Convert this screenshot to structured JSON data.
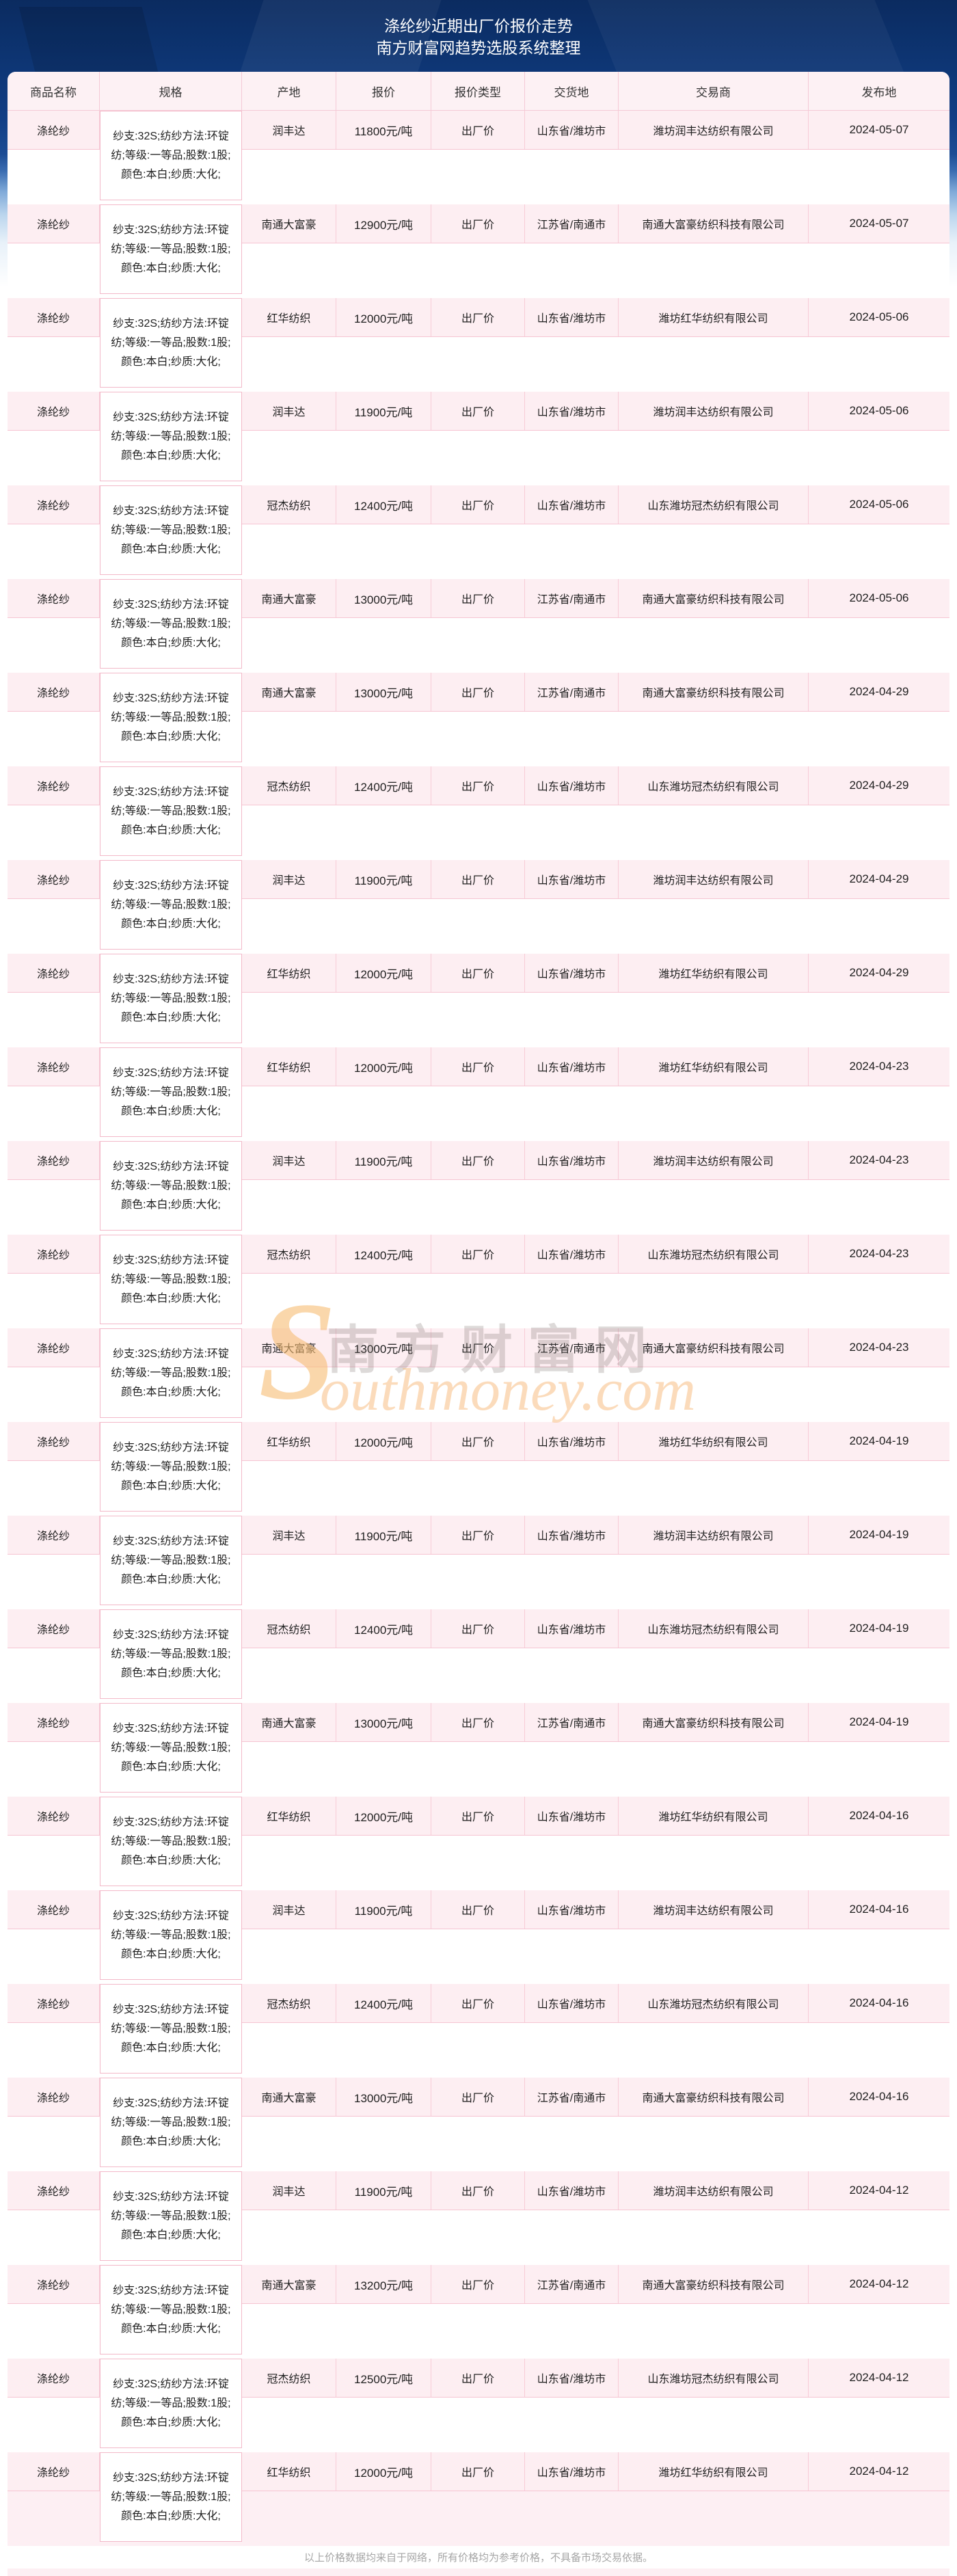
{
  "page": {
    "title_line1": "涤纶纱近期出厂价报价走势",
    "title_line2": "南方财富网趋势选股系统整理",
    "footer_note": "以上价格数据均来自于网络，所有价格均为参考价格，不具备市场交易依据。"
  },
  "watermark": {
    "big_s": "S",
    "cn_text": "南方财富网",
    "en_text": "outhmoney.com"
  },
  "colors": {
    "header_navy": "#0d3471",
    "card_header_pink": "#fdf1f4",
    "row_band_pink": "#fdeef2",
    "grid_line_pink": "#f6c4d2",
    "watermark_orange": "#f7bc73",
    "footer_gray": "#a6a6a6"
  },
  "table": {
    "headers": [
      "商品名称",
      "规格",
      "产地",
      "报价",
      "报价类型",
      "交货地",
      "交易商",
      "发布地"
    ],
    "rows": [
      {
        "product": "涤纶纱",
        "spec": "纱支:32S;纺纱方法:环锭纺;等级:一等品;股数:1股;颜色:本白;纱质:大化;",
        "origin": "润丰达",
        "price": "11800元/吨",
        "price_type": "出厂价",
        "delivery": "山东省/潍坊市",
        "trader": "潍坊润丰达纺织有限公司",
        "date": "2024-05-07"
      },
      {
        "product": "涤纶纱",
        "spec": "纱支:32S;纺纱方法:环锭纺;等级:一等品;股数:1股;颜色:本白;纱质:大化;",
        "origin": "南通大富豪",
        "price": "12900元/吨",
        "price_type": "出厂价",
        "delivery": "江苏省/南通市",
        "trader": "南通大富豪纺织科技有限公司",
        "date": "2024-05-07"
      },
      {
        "product": "涤纶纱",
        "spec": "纱支:32S;纺纱方法:环锭纺;等级:一等品;股数:1股;颜色:本白;纱质:大化;",
        "origin": "红华纺织",
        "price": "12000元/吨",
        "price_type": "出厂价",
        "delivery": "山东省/潍坊市",
        "trader": "潍坊红华纺织有限公司",
        "date": "2024-05-06"
      },
      {
        "product": "涤纶纱",
        "spec": "纱支:32S;纺纱方法:环锭纺;等级:一等品;股数:1股;颜色:本白;纱质:大化;",
        "origin": "润丰达",
        "price": "11900元/吨",
        "price_type": "出厂价",
        "delivery": "山东省/潍坊市",
        "trader": "潍坊润丰达纺织有限公司",
        "date": "2024-05-06"
      },
      {
        "product": "涤纶纱",
        "spec": "纱支:32S;纺纱方法:环锭纺;等级:一等品;股数:1股;颜色:本白;纱质:大化;",
        "origin": "冠杰纺织",
        "price": "12400元/吨",
        "price_type": "出厂价",
        "delivery": "山东省/潍坊市",
        "trader": "山东潍坊冠杰纺织有限公司",
        "date": "2024-05-06"
      },
      {
        "product": "涤纶纱",
        "spec": "纱支:32S;纺纱方法:环锭纺;等级:一等品;股数:1股;颜色:本白;纱质:大化;",
        "origin": "南通大富豪",
        "price": "13000元/吨",
        "price_type": "出厂价",
        "delivery": "江苏省/南通市",
        "trader": "南通大富豪纺织科技有限公司",
        "date": "2024-05-06"
      },
      {
        "product": "涤纶纱",
        "spec": "纱支:32S;纺纱方法:环锭纺;等级:一等品;股数:1股;颜色:本白;纱质:大化;",
        "origin": "南通大富豪",
        "price": "13000元/吨",
        "price_type": "出厂价",
        "delivery": "江苏省/南通市",
        "trader": "南通大富豪纺织科技有限公司",
        "date": "2024-04-29"
      },
      {
        "product": "涤纶纱",
        "spec": "纱支:32S;纺纱方法:环锭纺;等级:一等品;股数:1股;颜色:本白;纱质:大化;",
        "origin": "冠杰纺织",
        "price": "12400元/吨",
        "price_type": "出厂价",
        "delivery": "山东省/潍坊市",
        "trader": "山东潍坊冠杰纺织有限公司",
        "date": "2024-04-29"
      },
      {
        "product": "涤纶纱",
        "spec": "纱支:32S;纺纱方法:环锭纺;等级:一等品;股数:1股;颜色:本白;纱质:大化;",
        "origin": "润丰达",
        "price": "11900元/吨",
        "price_type": "出厂价",
        "delivery": "山东省/潍坊市",
        "trader": "潍坊润丰达纺织有限公司",
        "date": "2024-04-29"
      },
      {
        "product": "涤纶纱",
        "spec": "纱支:32S;纺纱方法:环锭纺;等级:一等品;股数:1股;颜色:本白;纱质:大化;",
        "origin": "红华纺织",
        "price": "12000元/吨",
        "price_type": "出厂价",
        "delivery": "山东省/潍坊市",
        "trader": "潍坊红华纺织有限公司",
        "date": "2024-04-29"
      },
      {
        "product": "涤纶纱",
        "spec": "纱支:32S;纺纱方法:环锭纺;等级:一等品;股数:1股;颜色:本白;纱质:大化;",
        "origin": "红华纺织",
        "price": "12000元/吨",
        "price_type": "出厂价",
        "delivery": "山东省/潍坊市",
        "trader": "潍坊红华纺织有限公司",
        "date": "2024-04-23"
      },
      {
        "product": "涤纶纱",
        "spec": "纱支:32S;纺纱方法:环锭纺;等级:一等品;股数:1股;颜色:本白;纱质:大化;",
        "origin": "润丰达",
        "price": "11900元/吨",
        "price_type": "出厂价",
        "delivery": "山东省/潍坊市",
        "trader": "潍坊润丰达纺织有限公司",
        "date": "2024-04-23"
      },
      {
        "product": "涤纶纱",
        "spec": "纱支:32S;纺纱方法:环锭纺;等级:一等品;股数:1股;颜色:本白;纱质:大化;",
        "origin": "冠杰纺织",
        "price": "12400元/吨",
        "price_type": "出厂价",
        "delivery": "山东省/潍坊市",
        "trader": "山东潍坊冠杰纺织有限公司",
        "date": "2024-04-23"
      },
      {
        "product": "涤纶纱",
        "spec": "纱支:32S;纺纱方法:环锭纺;等级:一等品;股数:1股;颜色:本白;纱质:大化;",
        "origin": "南通大富豪",
        "price": "13000元/吨",
        "price_type": "出厂价",
        "delivery": "江苏省/南通市",
        "trader": "南通大富豪纺织科技有限公司",
        "date": "2024-04-23"
      },
      {
        "product": "涤纶纱",
        "spec": "纱支:32S;纺纱方法:环锭纺;等级:一等品;股数:1股;颜色:本白;纱质:大化;",
        "origin": "红华纺织",
        "price": "12000元/吨",
        "price_type": "出厂价",
        "delivery": "山东省/潍坊市",
        "trader": "潍坊红华纺织有限公司",
        "date": "2024-04-19"
      },
      {
        "product": "涤纶纱",
        "spec": "纱支:32S;纺纱方法:环锭纺;等级:一等品;股数:1股;颜色:本白;纱质:大化;",
        "origin": "润丰达",
        "price": "11900元/吨",
        "price_type": "出厂价",
        "delivery": "山东省/潍坊市",
        "trader": "潍坊润丰达纺织有限公司",
        "date": "2024-04-19"
      },
      {
        "product": "涤纶纱",
        "spec": "纱支:32S;纺纱方法:环锭纺;等级:一等品;股数:1股;颜色:本白;纱质:大化;",
        "origin": "冠杰纺织",
        "price": "12400元/吨",
        "price_type": "出厂价",
        "delivery": "山东省/潍坊市",
        "trader": "山东潍坊冠杰纺织有限公司",
        "date": "2024-04-19"
      },
      {
        "product": "涤纶纱",
        "spec": "纱支:32S;纺纱方法:环锭纺;等级:一等品;股数:1股;颜色:本白;纱质:大化;",
        "origin": "南通大富豪",
        "price": "13000元/吨",
        "price_type": "出厂价",
        "delivery": "江苏省/南通市",
        "trader": "南通大富豪纺织科技有限公司",
        "date": "2024-04-19"
      },
      {
        "product": "涤纶纱",
        "spec": "纱支:32S;纺纱方法:环锭纺;等级:一等品;股数:1股;颜色:本白;纱质:大化;",
        "origin": "红华纺织",
        "price": "12000元/吨",
        "price_type": "出厂价",
        "delivery": "山东省/潍坊市",
        "trader": "潍坊红华纺织有限公司",
        "date": "2024-04-16"
      },
      {
        "product": "涤纶纱",
        "spec": "纱支:32S;纺纱方法:环锭纺;等级:一等品;股数:1股;颜色:本白;纱质:大化;",
        "origin": "润丰达",
        "price": "11900元/吨",
        "price_type": "出厂价",
        "delivery": "山东省/潍坊市",
        "trader": "潍坊润丰达纺织有限公司",
        "date": "2024-04-16"
      },
      {
        "product": "涤纶纱",
        "spec": "纱支:32S;纺纱方法:环锭纺;等级:一等品;股数:1股;颜色:本白;纱质:大化;",
        "origin": "冠杰纺织",
        "price": "12400元/吨",
        "price_type": "出厂价",
        "delivery": "山东省/潍坊市",
        "trader": "山东潍坊冠杰纺织有限公司",
        "date": "2024-04-16"
      },
      {
        "product": "涤纶纱",
        "spec": "纱支:32S;纺纱方法:环锭纺;等级:一等品;股数:1股;颜色:本白;纱质:大化;",
        "origin": "南通大富豪",
        "price": "13000元/吨",
        "price_type": "出厂价",
        "delivery": "江苏省/南通市",
        "trader": "南通大富豪纺织科技有限公司",
        "date": "2024-04-16"
      },
      {
        "product": "涤纶纱",
        "spec": "纱支:32S;纺纱方法:环锭纺;等级:一等品;股数:1股;颜色:本白;纱质:大化;",
        "origin": "润丰达",
        "price": "11900元/吨",
        "price_type": "出厂价",
        "delivery": "山东省/潍坊市",
        "trader": "潍坊润丰达纺织有限公司",
        "date": "2024-04-12"
      },
      {
        "product": "涤纶纱",
        "spec": "纱支:32S;纺纱方法:环锭纺;等级:一等品;股数:1股;颜色:本白;纱质:大化;",
        "origin": "南通大富豪",
        "price": "13200元/吨",
        "price_type": "出厂价",
        "delivery": "江苏省/南通市",
        "trader": "南通大富豪纺织科技有限公司",
        "date": "2024-04-12"
      },
      {
        "product": "涤纶纱",
        "spec": "纱支:32S;纺纱方法:环锭纺;等级:一等品;股数:1股;颜色:本白;纱质:大化;",
        "origin": "冠杰纺织",
        "price": "12500元/吨",
        "price_type": "出厂价",
        "delivery": "山东省/潍坊市",
        "trader": "山东潍坊冠杰纺织有限公司",
        "date": "2024-04-12"
      },
      {
        "product": "涤纶纱",
        "spec": "纱支:32S;纺纱方法:环锭纺;等级:一等品;股数:1股;颜色:本白;纱质:大化;",
        "origin": "红华纺织",
        "price": "12000元/吨",
        "price_type": "出厂价",
        "delivery": "山东省/潍坊市",
        "trader": "潍坊红华纺织有限公司",
        "date": "2024-04-12"
      }
    ]
  }
}
